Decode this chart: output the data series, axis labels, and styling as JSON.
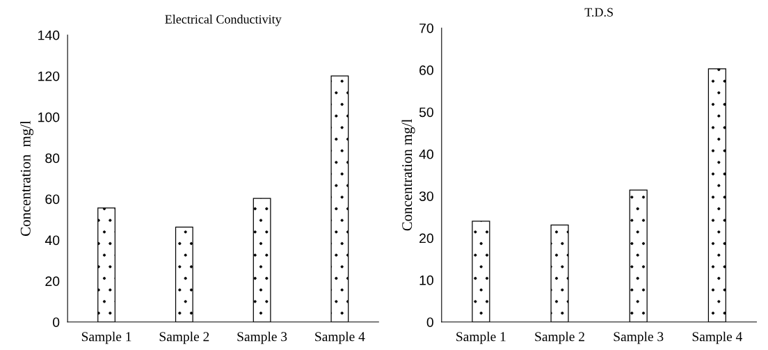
{
  "chart_data": [
    {
      "type": "bar",
      "title": "Electrical Conductivity",
      "ylabel": "Concentration  mg/l",
      "categories": [
        "Sample 1",
        "Sample 2",
        "Sample 3",
        "Sample 4"
      ],
      "values": [
        55.6,
        46.3,
        60.3,
        120
      ],
      "color": "#ffffff",
      "ylim": [
        0,
        140
      ],
      "yticks": [
        0,
        20,
        40,
        60,
        80,
        100,
        120,
        140
      ],
      "grid": false
    },
    {
      "type": "bar",
      "title": "T.D.S",
      "ylabel": "Concentration mg/l",
      "categories": [
        "Sample 1",
        "Sample 2",
        "Sample 3",
        "Sample 4"
      ],
      "values": [
        24.0,
        23.1,
        31.4,
        60.3
      ],
      "color": "#ffffff",
      "ylim": [
        0,
        70
      ],
      "yticks": [
        0,
        10,
        20,
        30,
        40,
        50,
        60,
        70
      ],
      "grid": false
    }
  ]
}
